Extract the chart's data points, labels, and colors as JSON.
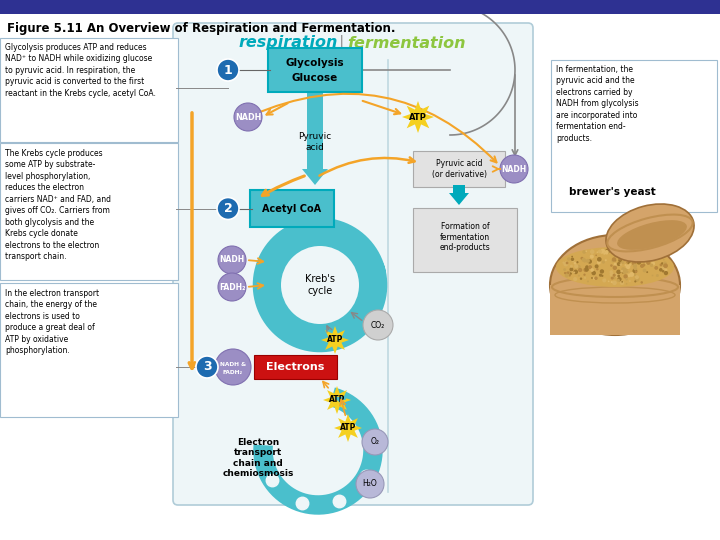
{
  "title": "Figure 5.11 An Overview of Respiration and Fermentation.",
  "title_bar_color": "#2e3192",
  "bg_color": "#ffffff",
  "teal": "#4abfcc",
  "teal_dark": "#00aabb",
  "purple": "#9b8ec4",
  "blue_btn": "#1e6bb0",
  "yellow": "#f5d020",
  "orange": "#f4a428",
  "red_btn": "#cc1111",
  "lavender": "#b8b8d8",
  "outer_border": "#b0ccd8",
  "outer_bg": "#eef6f8",
  "ann_border": "#a0bcd0",
  "green_ferm": "#8dc63f",
  "ferm_arrow_color": "#00aabb",
  "gray_circle": "#cccccc",
  "label1": "Glycolysis produces ATP and reduces\nNAD⁺ to NADH while oxidizing glucose\nto pyruvic acid. In respiration, the\npyruvic acid is converted to the first\nreactant in the Krebs cycle, acetyl CoA.",
  "label2": "The Krebs cycle produces\nsome ATP by substrate-\nlevel phosphorylation,\nreduces the electron\ncarriers NAD⁺ and FAD, and\ngives off CO₂. Carriers from\nboth glycolysis and the\nKrebs cycle donate\nelectrons to the electron\ntransport chain.",
  "label3": "In the electron transport\nchain, the energy of the\nelectrons is used to\nproduce a great deal of\nATP by oxidative\nphosphorylation.",
  "ferm_label": "In fermentation, the\npyruvic acid and the\nelectrons carried by\nNADH from glycolysis\nare incorporated into\nfermentation end-\nproducts.",
  "brewers": "brewer's yeast",
  "wood_light": "#d4a46a",
  "wood_mid": "#c09050",
  "wood_dark": "#a07038",
  "yeast_grain": "#d4a852"
}
